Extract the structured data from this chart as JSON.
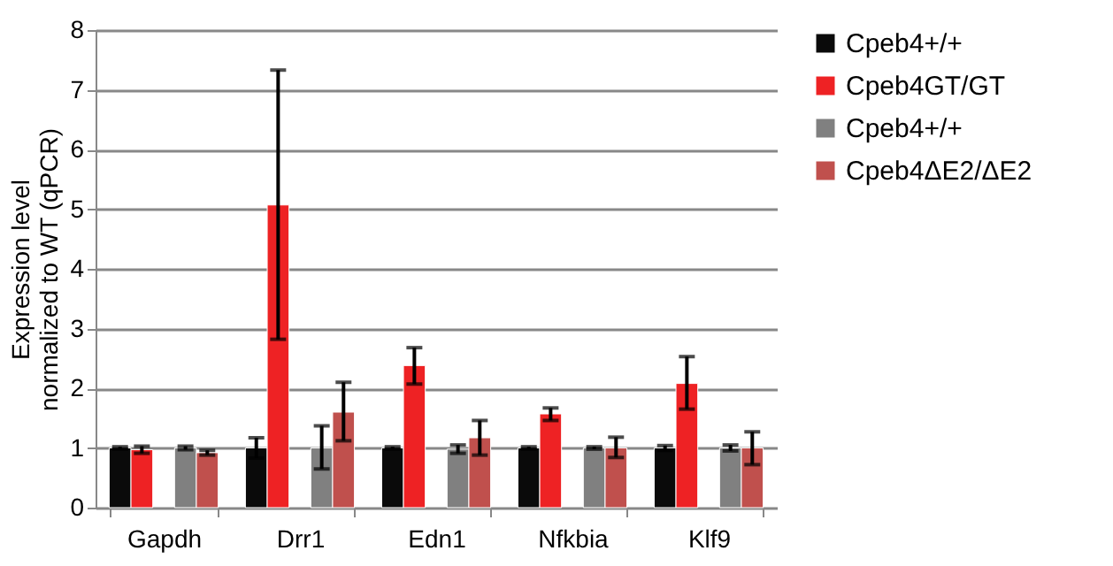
{
  "chart_data": {
    "type": "bar",
    "ylabel": "Expression level\nnormalized to WT (qPCR)",
    "categories": [
      "Gapdh",
      "Drr1",
      "Edn1",
      "Nfkbia",
      "Klf9"
    ],
    "series": [
      {
        "name": "Cpeb4+/+",
        "color": "#0a0a0a",
        "values": [
          1.0,
          1.0,
          1.0,
          1.0,
          1.0
        ],
        "errors": [
          0.02,
          0.17,
          0.02,
          0.02,
          0.04
        ]
      },
      {
        "name": "Cpeb4GT/GT",
        "color": "#ee2224",
        "values": [
          0.97,
          5.07,
          2.38,
          1.57,
          2.08
        ],
        "errors": [
          0.06,
          [
            2.82,
            7.33
          ],
          [
            2.07,
            2.68
          ],
          [
            1.46,
            1.67
          ],
          [
            1.65,
            2.53
          ]
        ]
      },
      {
        "name": "Cpeb4+/+",
        "color": "#808080",
        "values": [
          1.0,
          1.0,
          0.98,
          1.0,
          1.0
        ],
        "errors": [
          0.03,
          [
            0.65,
            1.37
          ],
          0.07,
          0.02,
          0.05
        ]
      },
      {
        "name": "Cpeb4ΔE2/ΔE2",
        "color": "#c0504d",
        "values": [
          0.92,
          1.6,
          1.17,
          1.0,
          1.0
        ],
        "errors": [
          0.04,
          [
            1.12,
            2.1
          ],
          [
            0.88,
            1.46
          ],
          [
            0.84,
            1.18
          ],
          [
            0.72,
            1.27
          ]
        ]
      }
    ],
    "ylim": [
      0,
      8
    ],
    "yticks": [
      0,
      1,
      2,
      3,
      4,
      5,
      6,
      7,
      8
    ],
    "grid": "y",
    "legend": "right"
  }
}
